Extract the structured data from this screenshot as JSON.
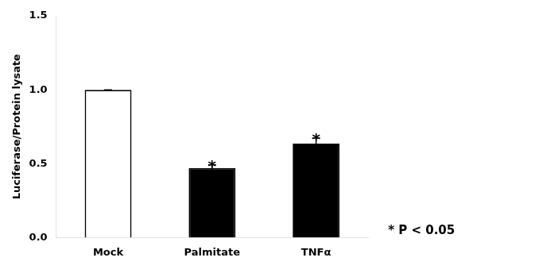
{
  "chart_data": {
    "type": "bar",
    "categories": [
      "Mock",
      "Palmitate",
      "TNFα"
    ],
    "values": [
      1.0,
      0.47,
      0.635
    ],
    "errors": [
      0.0,
      0.022,
      0.038
    ],
    "colors": [
      "#ffffff",
      "#000000",
      "#000000"
    ],
    "ylabel": "Luciferase/Protein lysate",
    "ylim": [
      0,
      1.5
    ],
    "yticks": [
      {
        "value": 0.0,
        "label": "0.0"
      },
      {
        "value": 0.5,
        "label": "0.5"
      },
      {
        "value": 1.0,
        "label": "1.0"
      },
      {
        "value": 1.5,
        "label": "1.5"
      }
    ],
    "significance": [
      null,
      "*",
      "*"
    ],
    "annotations": [
      "* P < 0.05"
    ],
    "grid": false
  }
}
